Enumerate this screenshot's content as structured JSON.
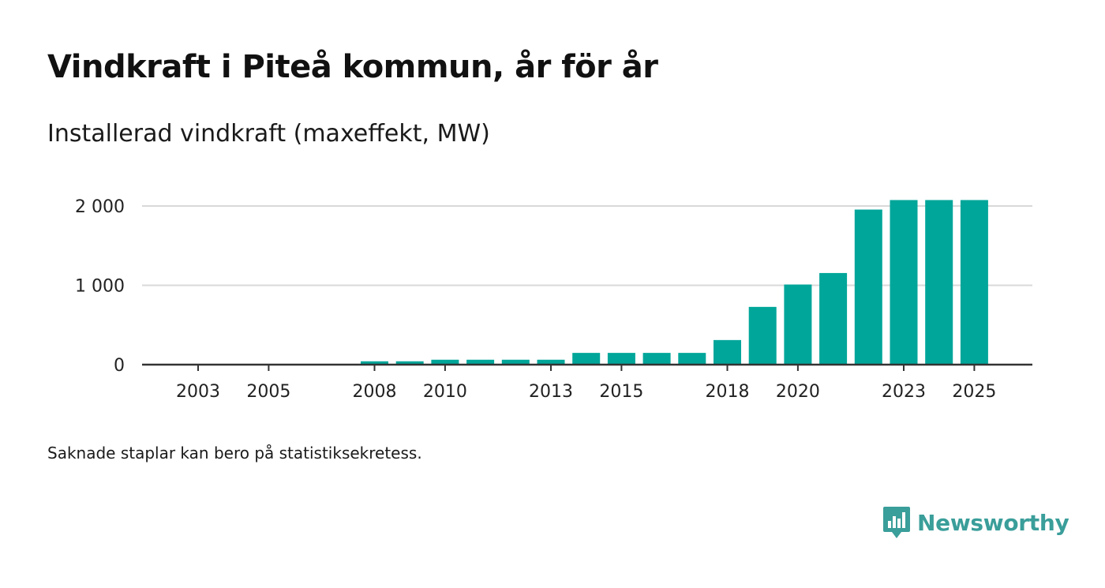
{
  "title": "Vindkraft i Piteå kommun, år för år",
  "subtitle": "Installerad vindkraft (maxeffekt, MW)",
  "footnote": "Saknade staplar kan bero på statistiksekretess.",
  "brand": {
    "name": "Newsworthy",
    "icon": "newsworthy-logo-icon",
    "color": "#3a9e9a"
  },
  "colors": {
    "bar": "#00a69a",
    "grid": "#d9d9d9",
    "axis": "#333333"
  },
  "chart_data": {
    "type": "bar",
    "title": "Vindkraft i Piteå kommun, år för år",
    "ylabel": "Installerad vindkraft (maxeffekt, MW)",
    "xlabel": "",
    "ylim": [
      0,
      2000
    ],
    "xlim": [
      2002,
      2027
    ],
    "y_ticks": [
      0,
      1000,
      2000
    ],
    "y_tick_labels": [
      "0",
      "1 000",
      "2 000"
    ],
    "x_ticks": [
      2003,
      2005,
      2008,
      2010,
      2013,
      2015,
      2018,
      2020,
      2023,
      2025
    ],
    "x_tick_labels": [
      "2003",
      "2005",
      "2008",
      "2010",
      "2013",
      "2015",
      "2018",
      "2020",
      "2023",
      "2025"
    ],
    "grid": true,
    "categories": [
      2003,
      2004,
      2005,
      2006,
      2007,
      2008,
      2009,
      2010,
      2011,
      2012,
      2013,
      2014,
      2015,
      2016,
      2017,
      2018,
      2019,
      2020,
      2021,
      2022,
      2023,
      2024,
      2025
    ],
    "values": [
      0,
      0,
      0,
      0,
      0,
      42,
      42,
      62,
      62,
      62,
      62,
      148,
      148,
      148,
      148,
      310,
      728,
      1010,
      1155,
      1955,
      2075,
      2075,
      2075
    ]
  }
}
